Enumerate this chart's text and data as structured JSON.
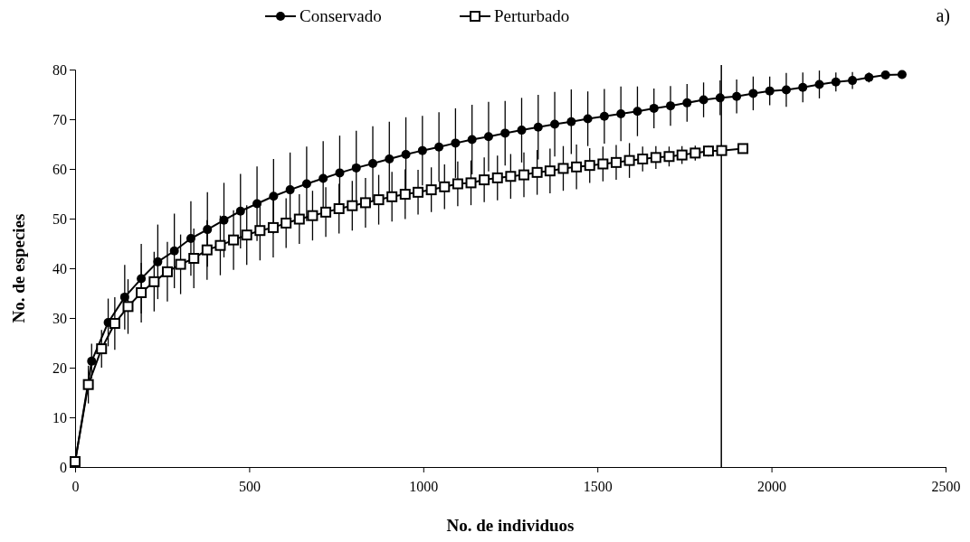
{
  "chart_data": {
    "type": "line",
    "xlabel": "No. de individuos",
    "ylabel": "No. de especies",
    "annotations": [
      "a)"
    ],
    "xlim": [
      0,
      2500
    ],
    "xticks": [
      0,
      500,
      1000,
      1500,
      2000,
      2500
    ],
    "ylim": [
      0,
      80
    ],
    "yticks": [
      0,
      10,
      20,
      30,
      40,
      50,
      60,
      70,
      80
    ],
    "grid": false,
    "legend": "top",
    "ref_lines": [
      {
        "axis": "x",
        "value": 1856,
        "label": null,
        "color": "#000000"
      }
    ],
    "series": [
      {
        "name": "Conservado",
        "color": "#000000",
        "marker": "circle",
        "x": [
          0,
          47.5,
          95,
          142.5,
          190,
          237.5,
          285,
          332.5,
          380,
          427.5,
          475,
          522.5,
          570,
          617.5,
          665,
          712.5,
          760,
          807.5,
          855,
          902.5,
          950,
          997.5,
          1045,
          1092.5,
          1140,
          1187.5,
          1235,
          1282.5,
          1330,
          1377.5,
          1425,
          1472.5,
          1520,
          1567.5,
          1615,
          1662.5,
          1710,
          1757.5,
          1805,
          1852.5,
          1900,
          1947.5,
          1995,
          2042.5,
          2090,
          2137.5,
          2185,
          2232.5,
          2280,
          2327.5,
          2375
        ],
        "values": [
          1,
          21.3,
          29.1,
          34.2,
          37.9,
          41.3,
          43.5,
          46,
          47.8,
          49.7,
          51.5,
          53,
          54.5,
          55.8,
          57,
          58.1,
          59.2,
          60.2,
          61.1,
          62,
          62.9,
          63.7,
          64.4,
          65.2,
          65.9,
          66.5,
          67.2,
          67.8,
          68.4,
          69,
          69.5,
          70.1,
          70.6,
          71.1,
          71.6,
          72.2,
          72.7,
          73.3,
          73.9,
          74.3,
          74.6,
          75.2,
          75.7,
          75.9,
          76.4,
          77,
          77.5,
          77.8,
          78.4,
          78.9,
          79
        ],
        "errors": [
          null,
          3.5,
          4.8,
          6.5,
          7,
          7.5,
          7.5,
          7.5,
          7.5,
          7.5,
          7.5,
          7.5,
          7.5,
          7.5,
          7.5,
          7.5,
          7.5,
          7.5,
          7.5,
          7.5,
          7.5,
          7,
          7,
          7,
          7,
          7,
          6.5,
          6.5,
          6.5,
          6.5,
          6.5,
          5.5,
          5.5,
          5.5,
          5,
          4,
          4,
          3.8,
          3.5,
          3.5,
          3.4,
          3.4,
          2.9,
          3.4,
          3,
          2.8,
          1.9,
          1.7,
          1,
          0.8,
          null
        ]
      },
      {
        "name": "Perturbado",
        "color": "#000000",
        "marker": "square",
        "x": [
          0,
          38,
          76,
          114,
          152,
          190,
          227,
          265,
          303,
          341,
          379,
          417,
          455,
          493,
          531,
          569,
          606,
          644,
          682,
          720,
          758,
          796,
          834,
          872,
          910,
          948,
          985,
          1023,
          1061,
          1099,
          1137,
          1175,
          1213,
          1251,
          1289,
          1327,
          1364,
          1402,
          1440,
          1478,
          1516,
          1554,
          1592,
          1630,
          1668,
          1706,
          1743,
          1781,
          1819,
          1857,
          1918
        ],
        "values": [
          1.1,
          16.6,
          23.8,
          28.9,
          32.3,
          35.1,
          37.3,
          39.3,
          40.8,
          42,
          43.7,
          44.6,
          45.7,
          46.7,
          47.6,
          48.2,
          49.1,
          49.9,
          50.6,
          51.3,
          52,
          52.6,
          53.2,
          53.8,
          54.4,
          54.9,
          55.3,
          55.8,
          56.4,
          57,
          57.2,
          57.8,
          58.2,
          58.5,
          58.8,
          59.3,
          59.6,
          60.1,
          60.4,
          60.7,
          61,
          61.3,
          61.7,
          62,
          62.3,
          62.5,
          62.8,
          63.2,
          63.6,
          63.7,
          64.1
        ],
        "errors": [
          null,
          3.8,
          3.8,
          5.3,
          5.5,
          6,
          6,
          6,
          6,
          6,
          6,
          6,
          6,
          6,
          6,
          6,
          5,
          5,
          5,
          5,
          5,
          5,
          5,
          5,
          5,
          5,
          4.5,
          4.5,
          4.5,
          4.5,
          4.5,
          4.5,
          4.5,
          4.5,
          4.5,
          4.5,
          4.5,
          4.5,
          4.5,
          3.5,
          3.5,
          3.5,
          3.5,
          2.5,
          2.3,
          2,
          1.8,
          1.5,
          1.1,
          0.8,
          null
        ]
      }
    ]
  }
}
